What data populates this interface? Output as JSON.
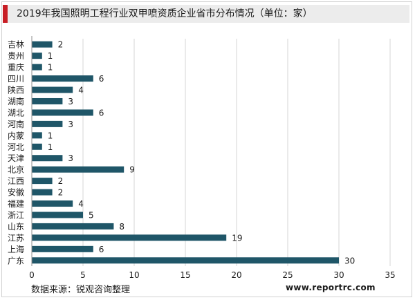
{
  "chart_data": {
    "type": "bar",
    "orientation": "horizontal",
    "title": "2019年我国照明工程行业双甲喷资质企业省市分布情况（单位：家）",
    "categories": [
      "吉林",
      "贵州",
      "重庆",
      "四川",
      "陕西",
      "湖南",
      "湖北",
      "河南",
      "内蒙",
      "河北",
      "天津",
      "北京",
      "江西",
      "安徽",
      "福建",
      "浙江",
      "山东",
      "江苏",
      "上海",
      "广东"
    ],
    "values": [
      2,
      1,
      1,
      6,
      4,
      3,
      6,
      3,
      1,
      1,
      3,
      9,
      2,
      2,
      4,
      5,
      8,
      19,
      6,
      30
    ],
    "xlim": [
      0,
      35
    ],
    "xticks": [
      0,
      5,
      10,
      15,
      20,
      25,
      30,
      35
    ],
    "grid": "vertical",
    "bar_color": "#1f5668",
    "accent_color": "#c81e25"
  },
  "footer": {
    "source": "数据来源：锐观咨询整理",
    "website": "www.reportrc.com"
  }
}
